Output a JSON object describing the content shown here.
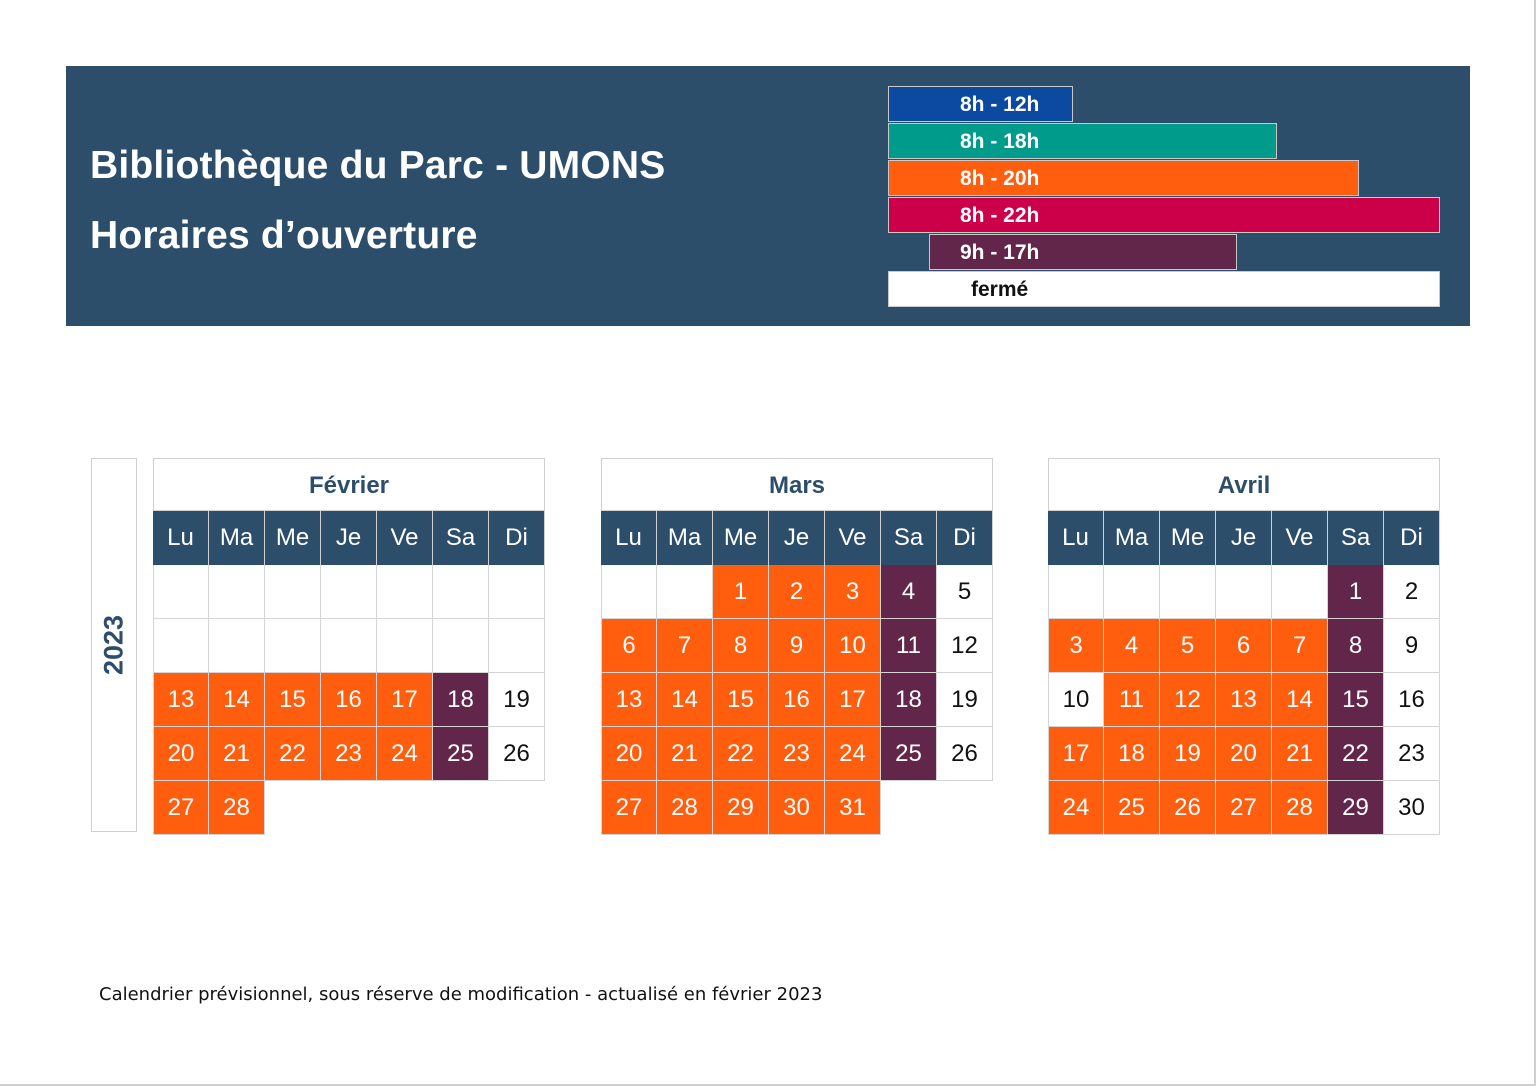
{
  "header": {
    "title_line1": "Bibliothèque du Parc - UMONS",
    "title_line2": "Horaires d’ouverture"
  },
  "legend": [
    {
      "label": "8h - 12h",
      "color": "#0b4aa0"
    },
    {
      "label": "8h - 18h",
      "color": "#009b8a"
    },
    {
      "label": "8h - 20h",
      "color": "#ff5e0e"
    },
    {
      "label": "8h - 22h",
      "color": "#cc0049"
    },
    {
      "label": "9h - 17h",
      "color": "#62264b"
    },
    {
      "label": "fermé",
      "color": "#ffffff"
    }
  ],
  "year": "2023",
  "weekdays": [
    "Lu",
    "Ma",
    "Me",
    "Je",
    "Ve",
    "Sa",
    "Di"
  ],
  "months": [
    {
      "name": "Février",
      "rows": [
        [
          [
            "",
            "white"
          ],
          [
            "",
            "white"
          ],
          [
            "",
            "white"
          ],
          [
            "",
            "white"
          ],
          [
            "",
            "white"
          ],
          [
            "",
            "white"
          ],
          [
            "",
            "white"
          ]
        ],
        [
          [
            "",
            "white"
          ],
          [
            "",
            "white"
          ],
          [
            "",
            "white"
          ],
          [
            "",
            "white"
          ],
          [
            "",
            "white"
          ],
          [
            "",
            "white"
          ],
          [
            "",
            "white"
          ]
        ],
        [
          [
            "13",
            "orange"
          ],
          [
            "14",
            "orange"
          ],
          [
            "15",
            "orange"
          ],
          [
            "16",
            "orange"
          ],
          [
            "17",
            "orange"
          ],
          [
            "18",
            "purple"
          ],
          [
            "19",
            "white"
          ]
        ],
        [
          [
            "20",
            "orange"
          ],
          [
            "21",
            "orange"
          ],
          [
            "22",
            "orange"
          ],
          [
            "23",
            "orange"
          ],
          [
            "24",
            "orange"
          ],
          [
            "25",
            "purple"
          ],
          [
            "26",
            "white"
          ]
        ],
        [
          [
            "27",
            "orange"
          ],
          [
            "28",
            "orange"
          ],
          [
            "",
            "none"
          ],
          [
            "",
            "none"
          ],
          [
            "",
            "none"
          ],
          [
            "",
            "none"
          ],
          [
            "",
            "none"
          ]
        ]
      ]
    },
    {
      "name": "Mars",
      "rows": [
        [
          [
            "",
            "white"
          ],
          [
            "",
            "white"
          ],
          [
            "1",
            "orange"
          ],
          [
            "2",
            "orange"
          ],
          [
            "3",
            "orange"
          ],
          [
            "4",
            "purple"
          ],
          [
            "5",
            "white"
          ]
        ],
        [
          [
            "6",
            "orange"
          ],
          [
            "7",
            "orange"
          ],
          [
            "8",
            "orange"
          ],
          [
            "9",
            "orange"
          ],
          [
            "10",
            "orange"
          ],
          [
            "11",
            "purple"
          ],
          [
            "12",
            "white"
          ]
        ],
        [
          [
            "13",
            "orange"
          ],
          [
            "14",
            "orange"
          ],
          [
            "15",
            "orange"
          ],
          [
            "16",
            "orange"
          ],
          [
            "17",
            "orange"
          ],
          [
            "18",
            "purple"
          ],
          [
            "19",
            "white"
          ]
        ],
        [
          [
            "20",
            "orange"
          ],
          [
            "21",
            "orange"
          ],
          [
            "22",
            "orange"
          ],
          [
            "23",
            "orange"
          ],
          [
            "24",
            "orange"
          ],
          [
            "25",
            "purple"
          ],
          [
            "26",
            "white"
          ]
        ],
        [
          [
            "27",
            "orange"
          ],
          [
            "28",
            "orange"
          ],
          [
            "29",
            "orange"
          ],
          [
            "30",
            "orange"
          ],
          [
            "31",
            "orange"
          ],
          [
            "",
            "none"
          ],
          [
            "",
            "none"
          ]
        ]
      ]
    },
    {
      "name": "Avril",
      "rows": [
        [
          [
            "",
            "white"
          ],
          [
            "",
            "white"
          ],
          [
            "",
            "white"
          ],
          [
            "",
            "white"
          ],
          [
            "",
            "white"
          ],
          [
            "1",
            "purple"
          ],
          [
            "2",
            "white"
          ]
        ],
        [
          [
            "3",
            "orange"
          ],
          [
            "4",
            "orange"
          ],
          [
            "5",
            "orange"
          ],
          [
            "6",
            "orange"
          ],
          [
            "7",
            "orange"
          ],
          [
            "8",
            "purple"
          ],
          [
            "9",
            "white"
          ]
        ],
        [
          [
            "10",
            "white"
          ],
          [
            "11",
            "orange"
          ],
          [
            "12",
            "orange"
          ],
          [
            "13",
            "orange"
          ],
          [
            "14",
            "orange"
          ],
          [
            "15",
            "purple"
          ],
          [
            "16",
            "white"
          ]
        ],
        [
          [
            "17",
            "orange"
          ],
          [
            "18",
            "orange"
          ],
          [
            "19",
            "orange"
          ],
          [
            "20",
            "orange"
          ],
          [
            "21",
            "orange"
          ],
          [
            "22",
            "purple"
          ],
          [
            "23",
            "white"
          ]
        ],
        [
          [
            "24",
            "orange"
          ],
          [
            "25",
            "orange"
          ],
          [
            "26",
            "orange"
          ],
          [
            "27",
            "orange"
          ],
          [
            "28",
            "orange"
          ],
          [
            "29",
            "purple"
          ],
          [
            "30",
            "white"
          ]
        ]
      ]
    }
  ],
  "footnote": "Calendrier prévisionnel, sous réserve de modification - actualisé en février 2023"
}
